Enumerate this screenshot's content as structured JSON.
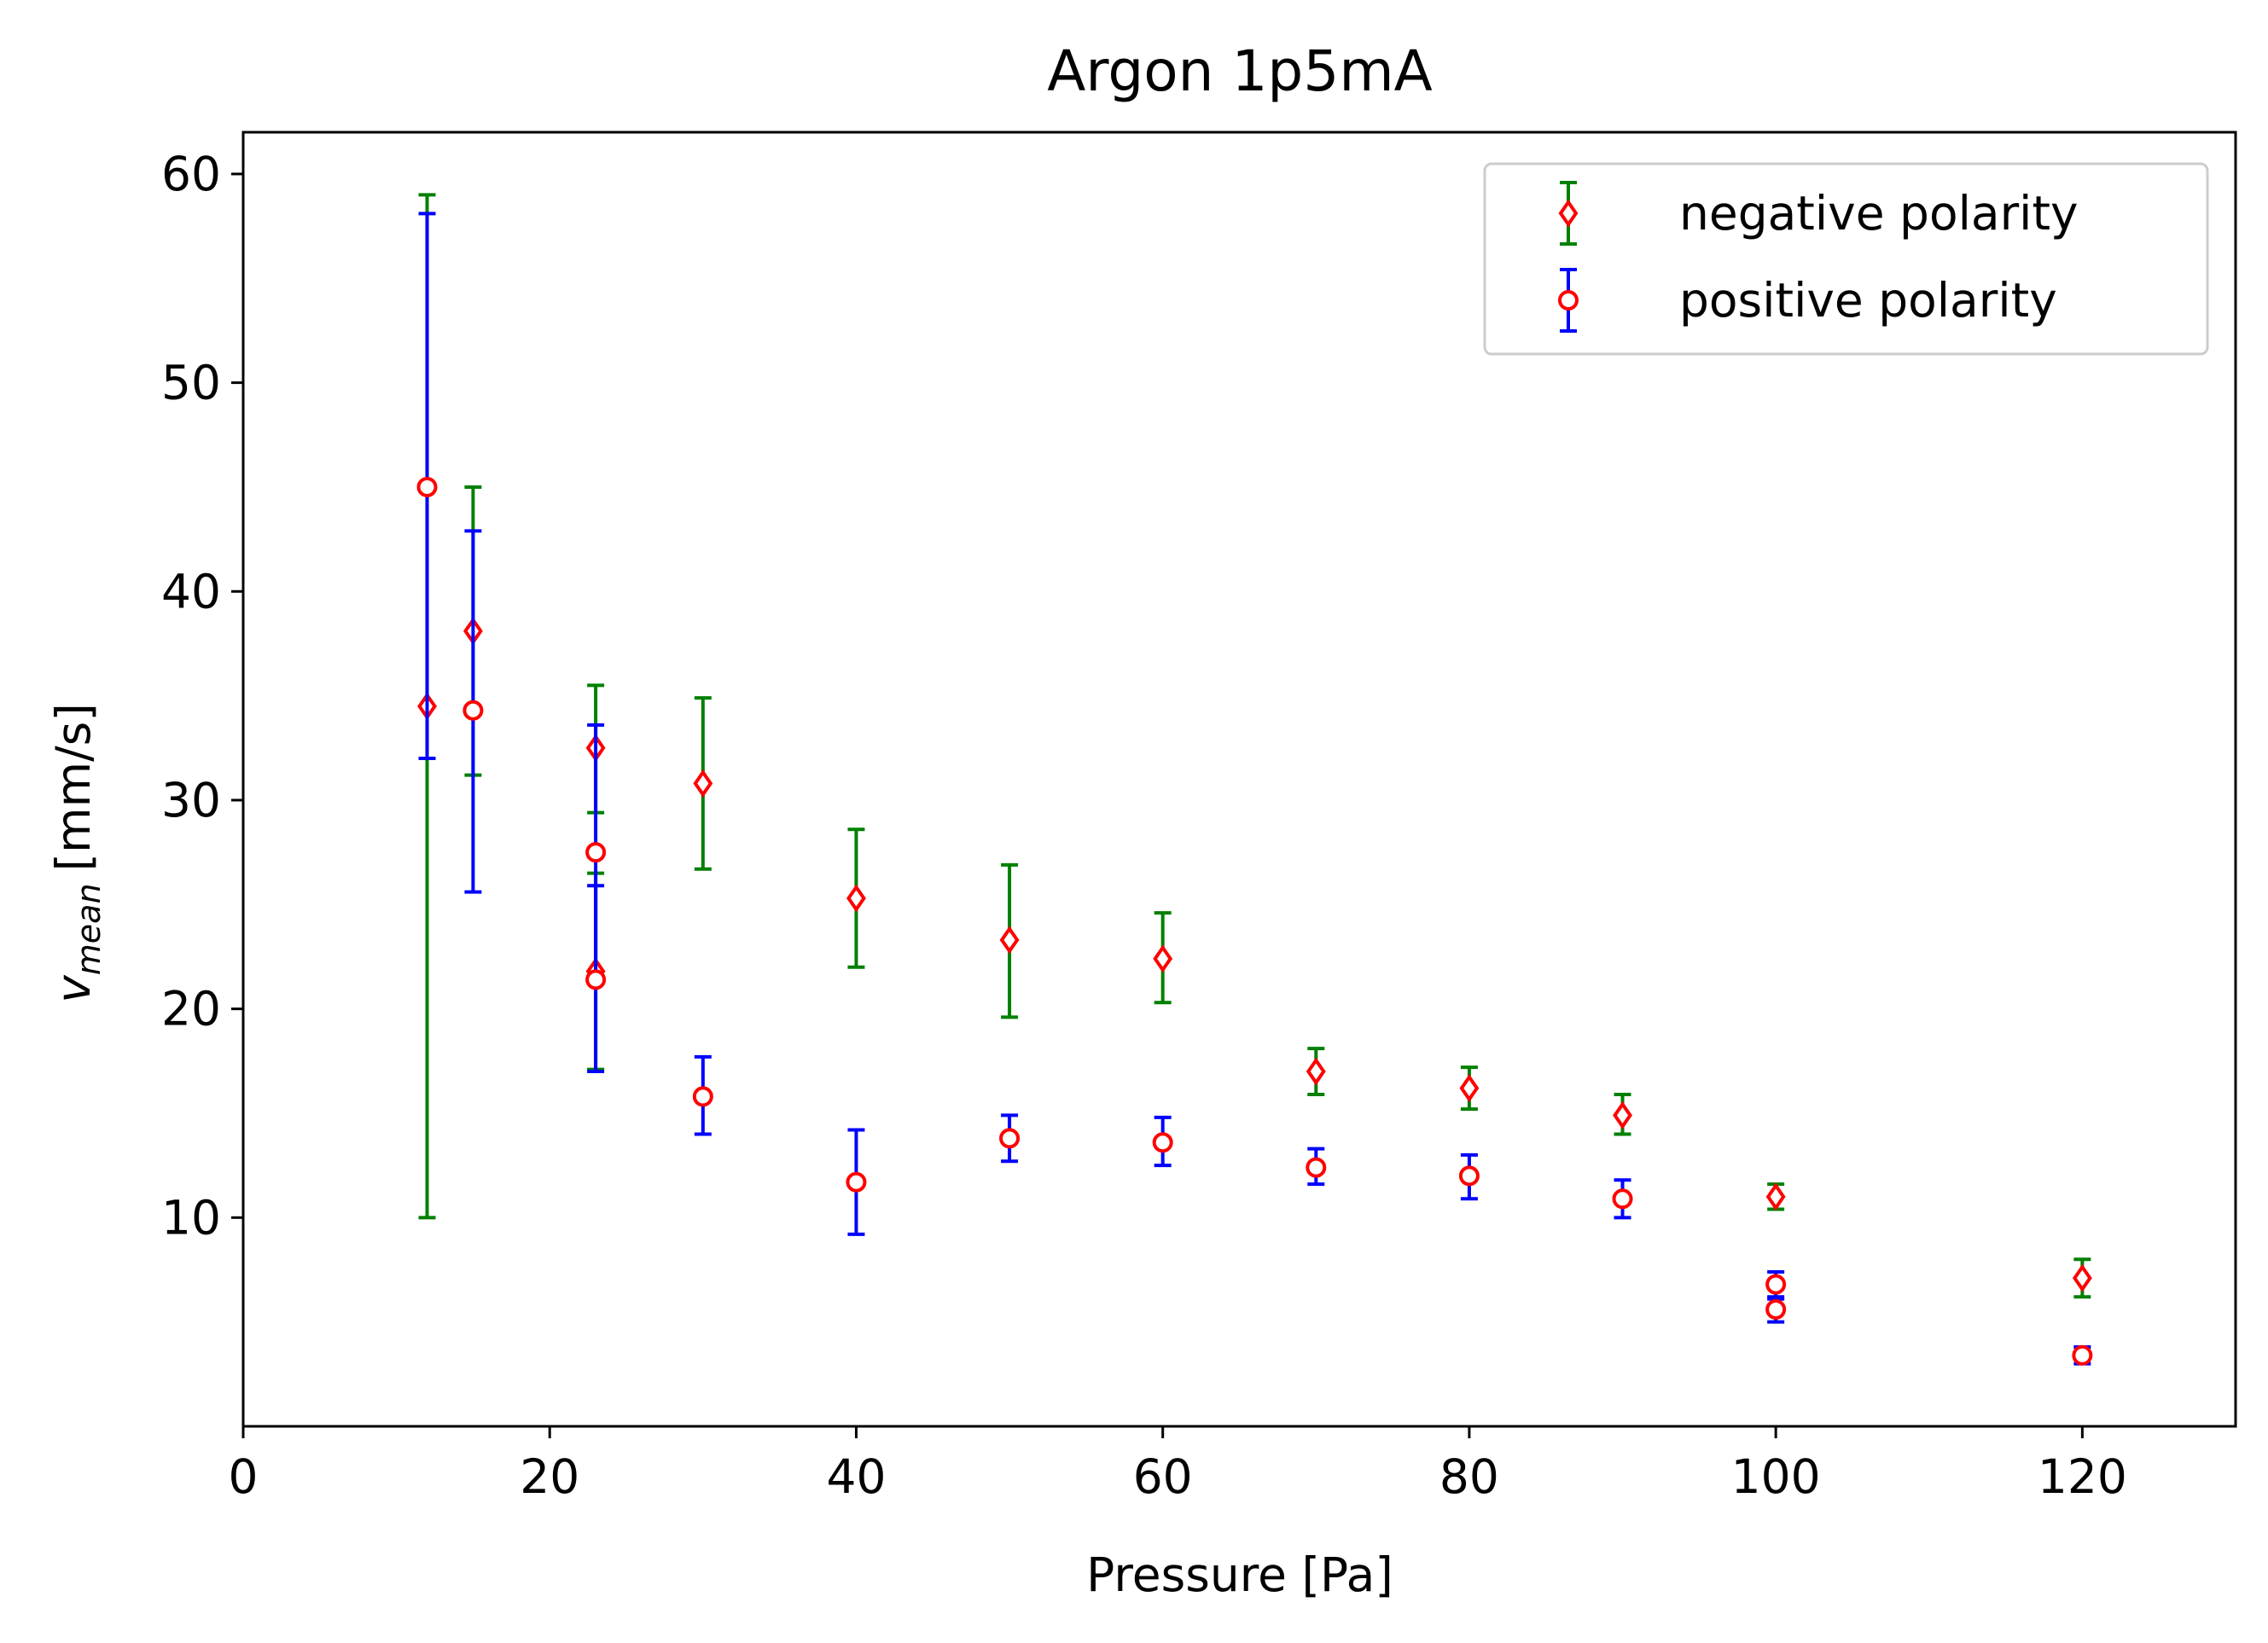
{
  "chart_data": {
    "type": "scatter",
    "title": "Argon 1p5mA",
    "xlabel": "Pressure [Pa]",
    "ylabel_main": "v",
    "ylabel_sub": "mean",
    "ylabel_unit": "[mm/s]",
    "xlim": [
      0,
      130
    ],
    "ylim": [
      0,
      62
    ],
    "xticks": [
      0,
      20,
      40,
      60,
      80,
      100,
      120
    ],
    "yticks": [
      10,
      20,
      30,
      40,
      50,
      60
    ],
    "grid": false,
    "legend_position": "top-right",
    "series": [
      {
        "name": "negative polarity",
        "marker": "diamond",
        "marker_edge_color": "#ff0000",
        "marker_face_color": "#ffffff",
        "errorbar_color": "#008000",
        "points": [
          {
            "x": 12,
            "y": 34.5,
            "ylo": 10.0,
            "yhi": 59.0
          },
          {
            "x": 15,
            "y": 38.1,
            "ylo": 31.2,
            "yhi": 45.0
          },
          {
            "x": 23,
            "y": 32.5,
            "ylo": 29.4,
            "yhi": 35.5
          },
          {
            "x": 23,
            "y": 21.8,
            "ylo": 17.1,
            "yhi": 26.5
          },
          {
            "x": 30,
            "y": 30.8,
            "ylo": 26.7,
            "yhi": 34.9
          },
          {
            "x": 40,
            "y": 25.3,
            "ylo": 22.0,
            "yhi": 28.6
          },
          {
            "x": 50,
            "y": 23.3,
            "ylo": 19.6,
            "yhi": 26.9
          },
          {
            "x": 60,
            "y": 22.4,
            "ylo": 20.3,
            "yhi": 24.6
          },
          {
            "x": 70,
            "y": 17.0,
            "ylo": 15.9,
            "yhi": 18.1
          },
          {
            "x": 80,
            "y": 16.2,
            "ylo": 15.2,
            "yhi": 17.2
          },
          {
            "x": 90,
            "y": 14.9,
            "ylo": 14.0,
            "yhi": 15.9
          },
          {
            "x": 100,
            "y": 11.0,
            "ylo": 10.4,
            "yhi": 11.6
          },
          {
            "x": 120,
            "y": 7.1,
            "ylo": 6.2,
            "yhi": 8.0
          }
        ]
      },
      {
        "name": "positive polarity",
        "marker": "circle",
        "marker_edge_color": "#ff0000",
        "marker_face_color": "#ffffff",
        "errorbar_color": "#0000ff",
        "points": [
          {
            "x": 12,
            "y": 45.0,
            "ylo": 32.0,
            "yhi": 58.1
          },
          {
            "x": 15,
            "y": 34.3,
            "ylo": 25.6,
            "yhi": 42.9
          },
          {
            "x": 23,
            "y": 27.5,
            "ylo": 21.3,
            "yhi": 33.6
          },
          {
            "x": 23,
            "y": 21.4,
            "ylo": 17.0,
            "yhi": 25.9
          },
          {
            "x": 30,
            "y": 15.8,
            "ylo": 14.0,
            "yhi": 17.7
          },
          {
            "x": 40,
            "y": 11.7,
            "ylo": 9.2,
            "yhi": 14.2
          },
          {
            "x": 50,
            "y": 13.8,
            "ylo": 12.7,
            "yhi": 14.9
          },
          {
            "x": 60,
            "y": 13.6,
            "ylo": 12.5,
            "yhi": 14.8
          },
          {
            "x": 70,
            "y": 12.4,
            "ylo": 11.6,
            "yhi": 13.3
          },
          {
            "x": 80,
            "y": 12.0,
            "ylo": 10.9,
            "yhi": 13.0
          },
          {
            "x": 90,
            "y": 10.9,
            "ylo": 10.0,
            "yhi": 11.8
          },
          {
            "x": 100,
            "y": 6.8,
            "ylo": 6.1,
            "yhi": 7.4
          },
          {
            "x": 100,
            "y": 5.6,
            "ylo": 5.0,
            "yhi": 6.2
          },
          {
            "x": 120,
            "y": 3.4,
            "ylo": 3.0,
            "yhi": 3.8
          }
        ]
      }
    ]
  }
}
